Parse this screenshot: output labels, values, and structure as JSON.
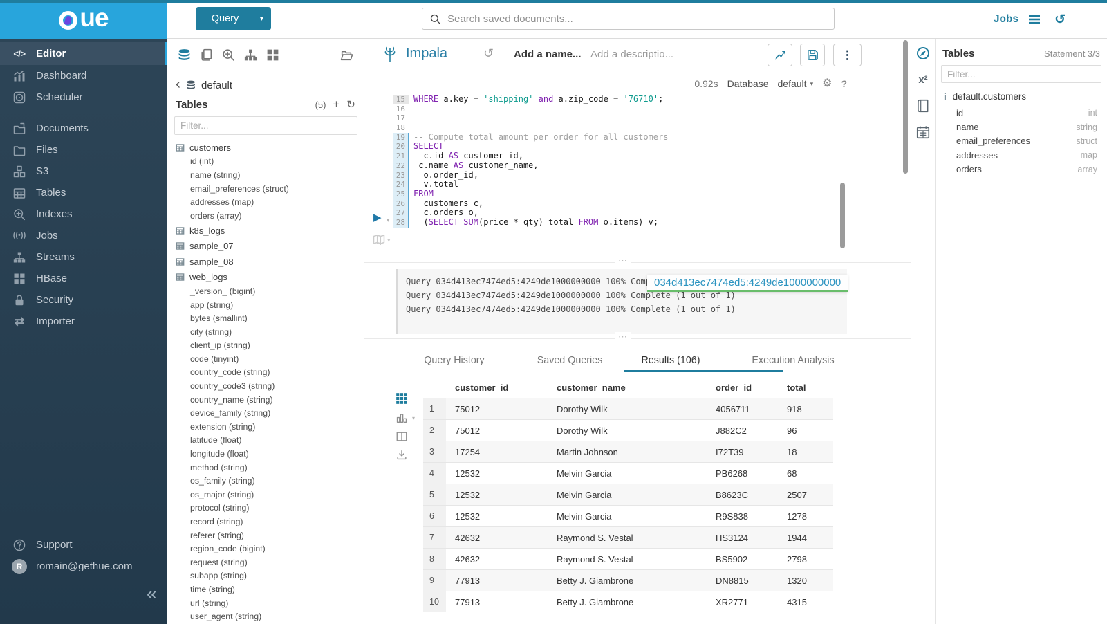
{
  "brand": {
    "logo_text": "ue",
    "colors": {
      "accent": "#1f7d9e",
      "logo_bg": "#28a5dc",
      "sidebar_top": "#2d4557",
      "sidebar_bottom": "#22394b",
      "active_item": "#3a5063",
      "stripe": "#28a5dc",
      "keyword": "#8023b0",
      "string": "#0f9b8e",
      "comment": "#a0a0a0",
      "green": "#69bd6b",
      "link": "#2b93c0"
    }
  },
  "topbar": {
    "query_label": "Query",
    "search_placeholder": "Search saved documents...",
    "jobs_label": "Jobs"
  },
  "left_nav": {
    "items": [
      {
        "label": "Editor",
        "icon": "code-icon",
        "active": true
      },
      {
        "label": "Dashboard",
        "icon": "dashboard-icon"
      },
      {
        "label": "Scheduler",
        "icon": "scheduler-icon",
        "spacer_after": true
      },
      {
        "label": "Documents",
        "icon": "documents-icon"
      },
      {
        "label": "Files",
        "icon": "folder-icon"
      },
      {
        "label": "S3",
        "icon": "cubes-icon"
      },
      {
        "label": "Tables",
        "icon": "table-grid-icon"
      },
      {
        "label": "Indexes",
        "icon": "search-plus-icon"
      },
      {
        "label": "Jobs",
        "icon": "broadcast-icon"
      },
      {
        "label": "Streams",
        "icon": "sitemap-icon"
      },
      {
        "label": "HBase",
        "icon": "blocks-icon"
      },
      {
        "label": "Security",
        "icon": "lock-icon"
      },
      {
        "label": "Importer",
        "icon": "transfer-icon"
      }
    ],
    "support_label": "Support",
    "user_email": "romain@gethue.com",
    "avatar_letter": "R"
  },
  "db_panel": {
    "toolbar_icons": [
      "db-stack-icon",
      "copy-icon",
      "zoom-in-icon",
      "sitemap-icon",
      "grid-icon",
      "folder-open-icon"
    ],
    "database": "default",
    "header": "Tables",
    "count": "(5)",
    "filter_placeholder": "Filter...",
    "tables": [
      {
        "name": "customers",
        "columns": [
          "id (int)",
          "name (string)",
          "email_preferences (struct)",
          "addresses (map)",
          "orders (array)"
        ]
      },
      {
        "name": "k8s_logs",
        "columns": []
      },
      {
        "name": "sample_07",
        "columns": []
      },
      {
        "name": "sample_08",
        "columns": []
      },
      {
        "name": "web_logs",
        "columns": [
          "_version_ (bigint)",
          "app (string)",
          "bytes (smallint)",
          "city (string)",
          "client_ip (string)",
          "code (tinyint)",
          "country_code (string)",
          "country_code3 (string)",
          "country_name (string)",
          "device_family (string)",
          "extension (string)",
          "latitude (float)",
          "longitude (float)",
          "method (string)",
          "os_family (string)",
          "os_major (string)",
          "protocol (string)",
          "record (string)",
          "referer (string)",
          "region_code (bigint)",
          "request (string)",
          "subapp (string)",
          "time (string)",
          "url (string)",
          "user_agent (string)"
        ]
      }
    ]
  },
  "editor": {
    "engine": "Impala",
    "name_placeholder": "Add a name...",
    "description_placeholder": "Add a descriptio...",
    "duration": "0.92s",
    "database_label": "Database",
    "database_value": "default",
    "lines": [
      {
        "n": 15,
        "mark": "cursor",
        "parts": [
          [
            "k",
            "WHERE"
          ],
          [
            "p",
            " a.key = "
          ],
          [
            "s",
            "'shipping'"
          ],
          [
            "p",
            " "
          ],
          [
            "k",
            "and"
          ],
          [
            "p",
            " a.zip_code = "
          ],
          [
            "s",
            "'76710'"
          ],
          [
            "p",
            ";"
          ]
        ]
      },
      {
        "n": 16,
        "parts": []
      },
      {
        "n": 17,
        "parts": []
      },
      {
        "n": 18,
        "parts": []
      },
      {
        "n": 19,
        "mark": "stmt",
        "parts": [
          [
            "c",
            "-- Compute total amount per order for all customers"
          ]
        ]
      },
      {
        "n": 20,
        "mark": "stmt",
        "parts": [
          [
            "k",
            "SELECT"
          ]
        ]
      },
      {
        "n": 21,
        "mark": "stmt",
        "parts": [
          [
            "p",
            "  c.id "
          ],
          [
            "k",
            "AS"
          ],
          [
            "p",
            " customer_id,"
          ]
        ]
      },
      {
        "n": 22,
        "mark": "stmt",
        "parts": [
          [
            "p",
            " c.name "
          ],
          [
            "k",
            "AS"
          ],
          [
            "p",
            " customer_name,"
          ]
        ]
      },
      {
        "n": 23,
        "mark": "stmt",
        "parts": [
          [
            "p",
            "  o.order_id,"
          ]
        ]
      },
      {
        "n": 24,
        "mark": "stmt",
        "parts": [
          [
            "p",
            "  v.total"
          ]
        ]
      },
      {
        "n": 25,
        "mark": "stmt",
        "parts": [
          [
            "k",
            "FROM"
          ]
        ]
      },
      {
        "n": 26,
        "mark": "stmt",
        "parts": [
          [
            "p",
            "  customers c,"
          ]
        ]
      },
      {
        "n": 27,
        "mark": "stmt",
        "parts": [
          [
            "p",
            "  c.orders o,"
          ]
        ]
      },
      {
        "n": 28,
        "mark": "stmt",
        "parts": [
          [
            "p",
            "  ("
          ],
          [
            "k",
            "SELECT"
          ],
          [
            "p",
            " "
          ],
          [
            "k",
            "SUM"
          ],
          [
            "p",
            "(price * qty) total "
          ],
          [
            "k",
            "FROM"
          ],
          [
            "p",
            " o.items) v;"
          ]
        ]
      }
    ]
  },
  "log": {
    "lines": [
      "Query 034d413ec7474ed5:4249de1000000000 100% Complete (1 out of 1)",
      "Query 034d413ec7474ed5:4249de1000000000 100% Complete (1 out of 1)",
      "Query 034d413ec7474ed5:4249de1000000000 100% Complete (1 out of 1)"
    ],
    "tooltip": "034d413ec7474ed5:4249de1000000000"
  },
  "tabs": [
    {
      "label": "Query History"
    },
    {
      "label": "Saved Queries"
    },
    {
      "label": "Results (106)",
      "active": true
    },
    {
      "label": "Execution Analysis"
    }
  ],
  "results": {
    "rail_icons": [
      "grid9-icon",
      "chart-bars-icon",
      "columns-icon",
      "download-icon"
    ],
    "columns": [
      "customer_id",
      "customer_name",
      "order_id",
      "total"
    ],
    "rows": [
      [
        "1",
        "75012",
        "Dorothy Wilk",
        "4056711",
        "918"
      ],
      [
        "2",
        "75012",
        "Dorothy Wilk",
        "J882C2",
        "96"
      ],
      [
        "3",
        "17254",
        "Martin Johnson",
        "I72T39",
        "18"
      ],
      [
        "4",
        "12532",
        "Melvin Garcia",
        "PB6268",
        "68"
      ],
      [
        "5",
        "12532",
        "Melvin Garcia",
        "B8623C",
        "2507"
      ],
      [
        "6",
        "12532",
        "Melvin Garcia",
        "R9S838",
        "1278"
      ],
      [
        "7",
        "42632",
        "Raymond S. Vestal",
        "HS3124",
        "1944"
      ],
      [
        "8",
        "42632",
        "Raymond S. Vestal",
        "BS5902",
        "2798"
      ],
      [
        "9",
        "77913",
        "Betty J. Giambrone",
        "DN8815",
        "1320"
      ],
      [
        "10",
        "77913",
        "Betty J. Giambrone",
        "XR2771",
        "4315"
      ]
    ]
  },
  "right_rail_icons": [
    "compass-icon",
    "superscript-icon",
    "book-icon",
    "calendar-icon"
  ],
  "context_panel": {
    "header": "Tables",
    "statement": "Statement 3/3",
    "filter_placeholder": "Filter...",
    "table_name": "default.customers",
    "columns": [
      {
        "name": "id",
        "type": "int"
      },
      {
        "name": "name",
        "type": "string"
      },
      {
        "name": "email_preferences",
        "type": "struct"
      },
      {
        "name": "addresses",
        "type": "map"
      },
      {
        "name": "orders",
        "type": "array"
      }
    ]
  }
}
